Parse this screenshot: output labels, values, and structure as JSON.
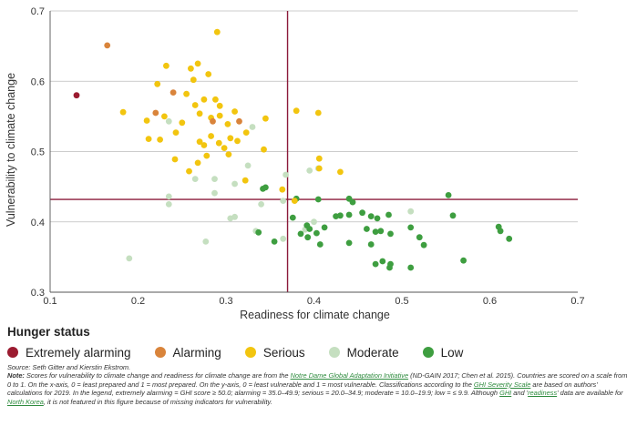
{
  "chart_data": {
    "type": "scatter",
    "title": "",
    "xlabel": "Readiness for climate change",
    "ylabel": "Vulnerability to climate change",
    "xlim": [
      0.1,
      0.7
    ],
    "ylim": [
      0.3,
      0.7
    ],
    "xticks": [
      0.1,
      0.2,
      0.3,
      0.4,
      0.5,
      0.6,
      0.7
    ],
    "yticks": [
      0.3,
      0.4,
      0.5,
      0.6,
      0.7
    ],
    "xtick_labels": [
      "0.1",
      "0.2",
      "0.3",
      "0.4",
      "0.5",
      "0.6",
      "0.7"
    ],
    "ytick_labels": [
      "0.3",
      "0.4",
      "0.5",
      "0.6",
      "0.7"
    ],
    "grid": "horizontal",
    "reference_lines": {
      "x": 0.37,
      "y": 0.432,
      "color": "#8b1a3a"
    },
    "series": [
      {
        "name": "Extremely alarming",
        "color": "#9b1b30",
        "points": [
          [
            0.13,
            0.58
          ]
        ]
      },
      {
        "name": "Alarming",
        "color": "#d9843b",
        "points": [
          [
            0.165,
            0.651
          ],
          [
            0.22,
            0.555
          ],
          [
            0.24,
            0.584
          ],
          [
            0.285,
            0.543
          ],
          [
            0.315,
            0.543
          ]
        ]
      },
      {
        "name": "Serious",
        "color": "#f2c50f",
        "points": [
          [
            0.29,
            0.67
          ],
          [
            0.232,
            0.622
          ],
          [
            0.268,
            0.625
          ],
          [
            0.26,
            0.618
          ],
          [
            0.263,
            0.602
          ],
          [
            0.28,
            0.61
          ],
          [
            0.222,
            0.596
          ],
          [
            0.255,
            0.582
          ],
          [
            0.275,
            0.574
          ],
          [
            0.293,
            0.565
          ],
          [
            0.288,
            0.574
          ],
          [
            0.31,
            0.557
          ],
          [
            0.265,
            0.566
          ],
          [
            0.183,
            0.556
          ],
          [
            0.23,
            0.55
          ],
          [
            0.27,
            0.554
          ],
          [
            0.21,
            0.544
          ],
          [
            0.25,
            0.541
          ],
          [
            0.283,
            0.548
          ],
          [
            0.293,
            0.551
          ],
          [
            0.302,
            0.539
          ],
          [
            0.323,
            0.527
          ],
          [
            0.345,
            0.547
          ],
          [
            0.38,
            0.558
          ],
          [
            0.405,
            0.555
          ],
          [
            0.243,
            0.527
          ],
          [
            0.283,
            0.522
          ],
          [
            0.305,
            0.519
          ],
          [
            0.313,
            0.515
          ],
          [
            0.212,
            0.518
          ],
          [
            0.225,
            0.517
          ],
          [
            0.27,
            0.514
          ],
          [
            0.275,
            0.509
          ],
          [
            0.292,
            0.512
          ],
          [
            0.298,
            0.505
          ],
          [
            0.343,
            0.503
          ],
          [
            0.242,
            0.489
          ],
          [
            0.268,
            0.484
          ],
          [
            0.278,
            0.494
          ],
          [
            0.303,
            0.496
          ],
          [
            0.406,
            0.49
          ],
          [
            0.406,
            0.476
          ],
          [
            0.43,
            0.471
          ],
          [
            0.258,
            0.472
          ],
          [
            0.322,
            0.459
          ],
          [
            0.364,
            0.446
          ],
          [
            0.378,
            0.43
          ]
        ]
      },
      {
        "name": "Moderate",
        "color": "#c5dfc0",
        "points": [
          [
            0.235,
            0.543
          ],
          [
            0.33,
            0.535
          ],
          [
            0.325,
            0.48
          ],
          [
            0.368,
            0.467
          ],
          [
            0.395,
            0.473
          ],
          [
            0.405,
            0.476
          ],
          [
            0.265,
            0.461
          ],
          [
            0.287,
            0.461
          ],
          [
            0.31,
            0.454
          ],
          [
            0.235,
            0.436
          ],
          [
            0.235,
            0.425
          ],
          [
            0.287,
            0.441
          ],
          [
            0.365,
            0.43
          ],
          [
            0.34,
            0.425
          ],
          [
            0.305,
            0.405
          ],
          [
            0.31,
            0.407
          ],
          [
            0.334,
            0.387
          ],
          [
            0.39,
            0.389
          ],
          [
            0.4,
            0.4
          ],
          [
            0.51,
            0.415
          ],
          [
            0.277,
            0.372
          ],
          [
            0.19,
            0.348
          ],
          [
            0.365,
            0.376
          ]
        ]
      },
      {
        "name": "Low",
        "color": "#3e9e40",
        "points": [
          [
            0.342,
            0.447
          ],
          [
            0.345,
            0.449
          ],
          [
            0.553,
            0.438
          ],
          [
            0.44,
            0.433
          ],
          [
            0.444,
            0.428
          ],
          [
            0.405,
            0.432
          ],
          [
            0.38,
            0.433
          ],
          [
            0.43,
            0.409
          ],
          [
            0.44,
            0.41
          ],
          [
            0.455,
            0.413
          ],
          [
            0.465,
            0.408
          ],
          [
            0.472,
            0.405
          ],
          [
            0.485,
            0.41
          ],
          [
            0.558,
            0.409
          ],
          [
            0.376,
            0.406
          ],
          [
            0.392,
            0.395
          ],
          [
            0.395,
            0.39
          ],
          [
            0.412,
            0.392
          ],
          [
            0.425,
            0.408
          ],
          [
            0.46,
            0.39
          ],
          [
            0.47,
            0.386
          ],
          [
            0.476,
            0.387
          ],
          [
            0.487,
            0.383
          ],
          [
            0.51,
            0.392
          ],
          [
            0.52,
            0.378
          ],
          [
            0.525,
            0.367
          ],
          [
            0.61,
            0.393
          ],
          [
            0.612,
            0.387
          ],
          [
            0.622,
            0.376
          ],
          [
            0.385,
            0.383
          ],
          [
            0.393,
            0.378
          ],
          [
            0.403,
            0.384
          ],
          [
            0.407,
            0.368
          ],
          [
            0.44,
            0.37
          ],
          [
            0.465,
            0.368
          ],
          [
            0.355,
            0.372
          ],
          [
            0.337,
            0.385
          ],
          [
            0.47,
            0.34
          ],
          [
            0.478,
            0.344
          ],
          [
            0.487,
            0.34
          ],
          [
            0.486,
            0.335
          ],
          [
            0.51,
            0.335
          ],
          [
            0.57,
            0.345
          ]
        ]
      }
    ]
  },
  "legend": {
    "title": "Hunger status",
    "items": [
      {
        "label": "Extremely alarming",
        "color": "#9b1b30"
      },
      {
        "label": "Alarming",
        "color": "#d9843b"
      },
      {
        "label": "Serious",
        "color": "#f2c50f"
      },
      {
        "label": "Moderate",
        "color": "#c5dfc0"
      },
      {
        "label": "Low",
        "color": "#3e9e40"
      }
    ]
  },
  "notes": {
    "source": "Source: Seth Gitter and Kierstin Ekstrom.",
    "note_prefix": "Note:",
    "note_1": " Scores for vulnerability to climate change and readiness for climate change are from the ",
    "link_nd_gain": "Notre Dame Global Adaptation Initiative",
    "note_2": " (ND-GAIN 2017; Chen et al. 2015). Countries are scored on a scale from 0 to 1. On the x-axis, 0 = least prepared and 1 = most prepared. On the y-axis, 0 = least vulnerable and 1 = most vulnerable. Classifications according to the ",
    "link_ghi_scale": "GHI Severity Scale",
    "note_3": " are based on authors' calculations for 2019. In the legend, extremely alarming = GHI score ≥ 50.0; alarming = 35.0–49.9; serious = 20.0–34.9; moderate = 10.0–19.9; low = ≤ 9.9. Although ",
    "link_ghi": "GHI",
    "note_4": " and '",
    "link_readiness": "readiness",
    "note_5": "' data are available for ",
    "link_north_korea": "North Korea",
    "note_6": ", it is not featured in this figure because of missing indicators for vulnerability."
  }
}
